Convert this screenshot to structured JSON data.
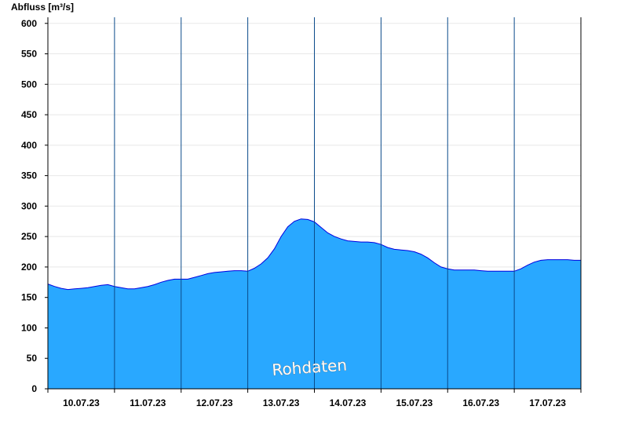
{
  "chart_data": {
    "type": "area",
    "ylabel": "Abfluss [m³/s]",
    "xlabel": "",
    "ylim": [
      0,
      610
    ],
    "yticks": [
      0,
      50,
      100,
      150,
      200,
      250,
      300,
      350,
      400,
      450,
      500,
      550,
      600
    ],
    "grid": true,
    "watermark": "Rohdaten",
    "x_day_labels": [
      "10.07.23",
      "11.07.23",
      "12.07.23",
      "13.07.23",
      "14.07.23",
      "15.07.23",
      "16.07.23",
      "17.07.23"
    ],
    "series": [
      {
        "x": [
          0,
          0.1,
          0.2,
          0.3,
          0.4,
          0.5,
          0.6,
          0.7,
          0.8,
          0.9,
          1.0,
          1.1,
          1.2,
          1.3,
          1.4,
          1.5,
          1.6,
          1.7,
          1.8,
          1.9,
          2.0,
          2.1,
          2.2,
          2.3,
          2.4,
          2.5,
          2.6,
          2.7,
          2.8,
          2.9,
          3.0,
          3.1,
          3.2,
          3.3,
          3.4,
          3.5,
          3.6,
          3.7,
          3.8,
          3.9,
          4.0,
          4.1,
          4.2,
          4.3,
          4.4,
          4.5,
          4.6,
          4.7,
          4.8,
          4.9,
          5.0,
          5.1,
          5.2,
          5.3,
          5.4,
          5.5,
          5.6,
          5.7,
          5.8,
          5.9,
          6.0,
          6.1,
          6.2,
          6.3,
          6.4,
          6.5,
          6.6,
          6.7,
          6.8,
          6.9,
          7.0,
          7.1,
          7.2,
          7.3,
          7.4,
          7.5,
          7.6,
          7.7,
          7.8,
          7.9,
          8.0
        ],
        "y": [
          172,
          168,
          165,
          163,
          164,
          165,
          166,
          168,
          170,
          171,
          168,
          166,
          164,
          164,
          166,
          168,
          171,
          175,
          178,
          180,
          180,
          180,
          183,
          186,
          189,
          191,
          192,
          193,
          194,
          194,
          193,
          198,
          205,
          215,
          230,
          250,
          266,
          275,
          279,
          278,
          274,
          265,
          256,
          250,
          246,
          243,
          242,
          241,
          241,
          240,
          237,
          232,
          229,
          228,
          227,
          225,
          221,
          215,
          207,
          200,
          197,
          195,
          195,
          195,
          195,
          194,
          193,
          193,
          193,
          193,
          193,
          197,
          203,
          208,
          211,
          212,
          212,
          212,
          212,
          211,
          211
        ]
      }
    ]
  }
}
